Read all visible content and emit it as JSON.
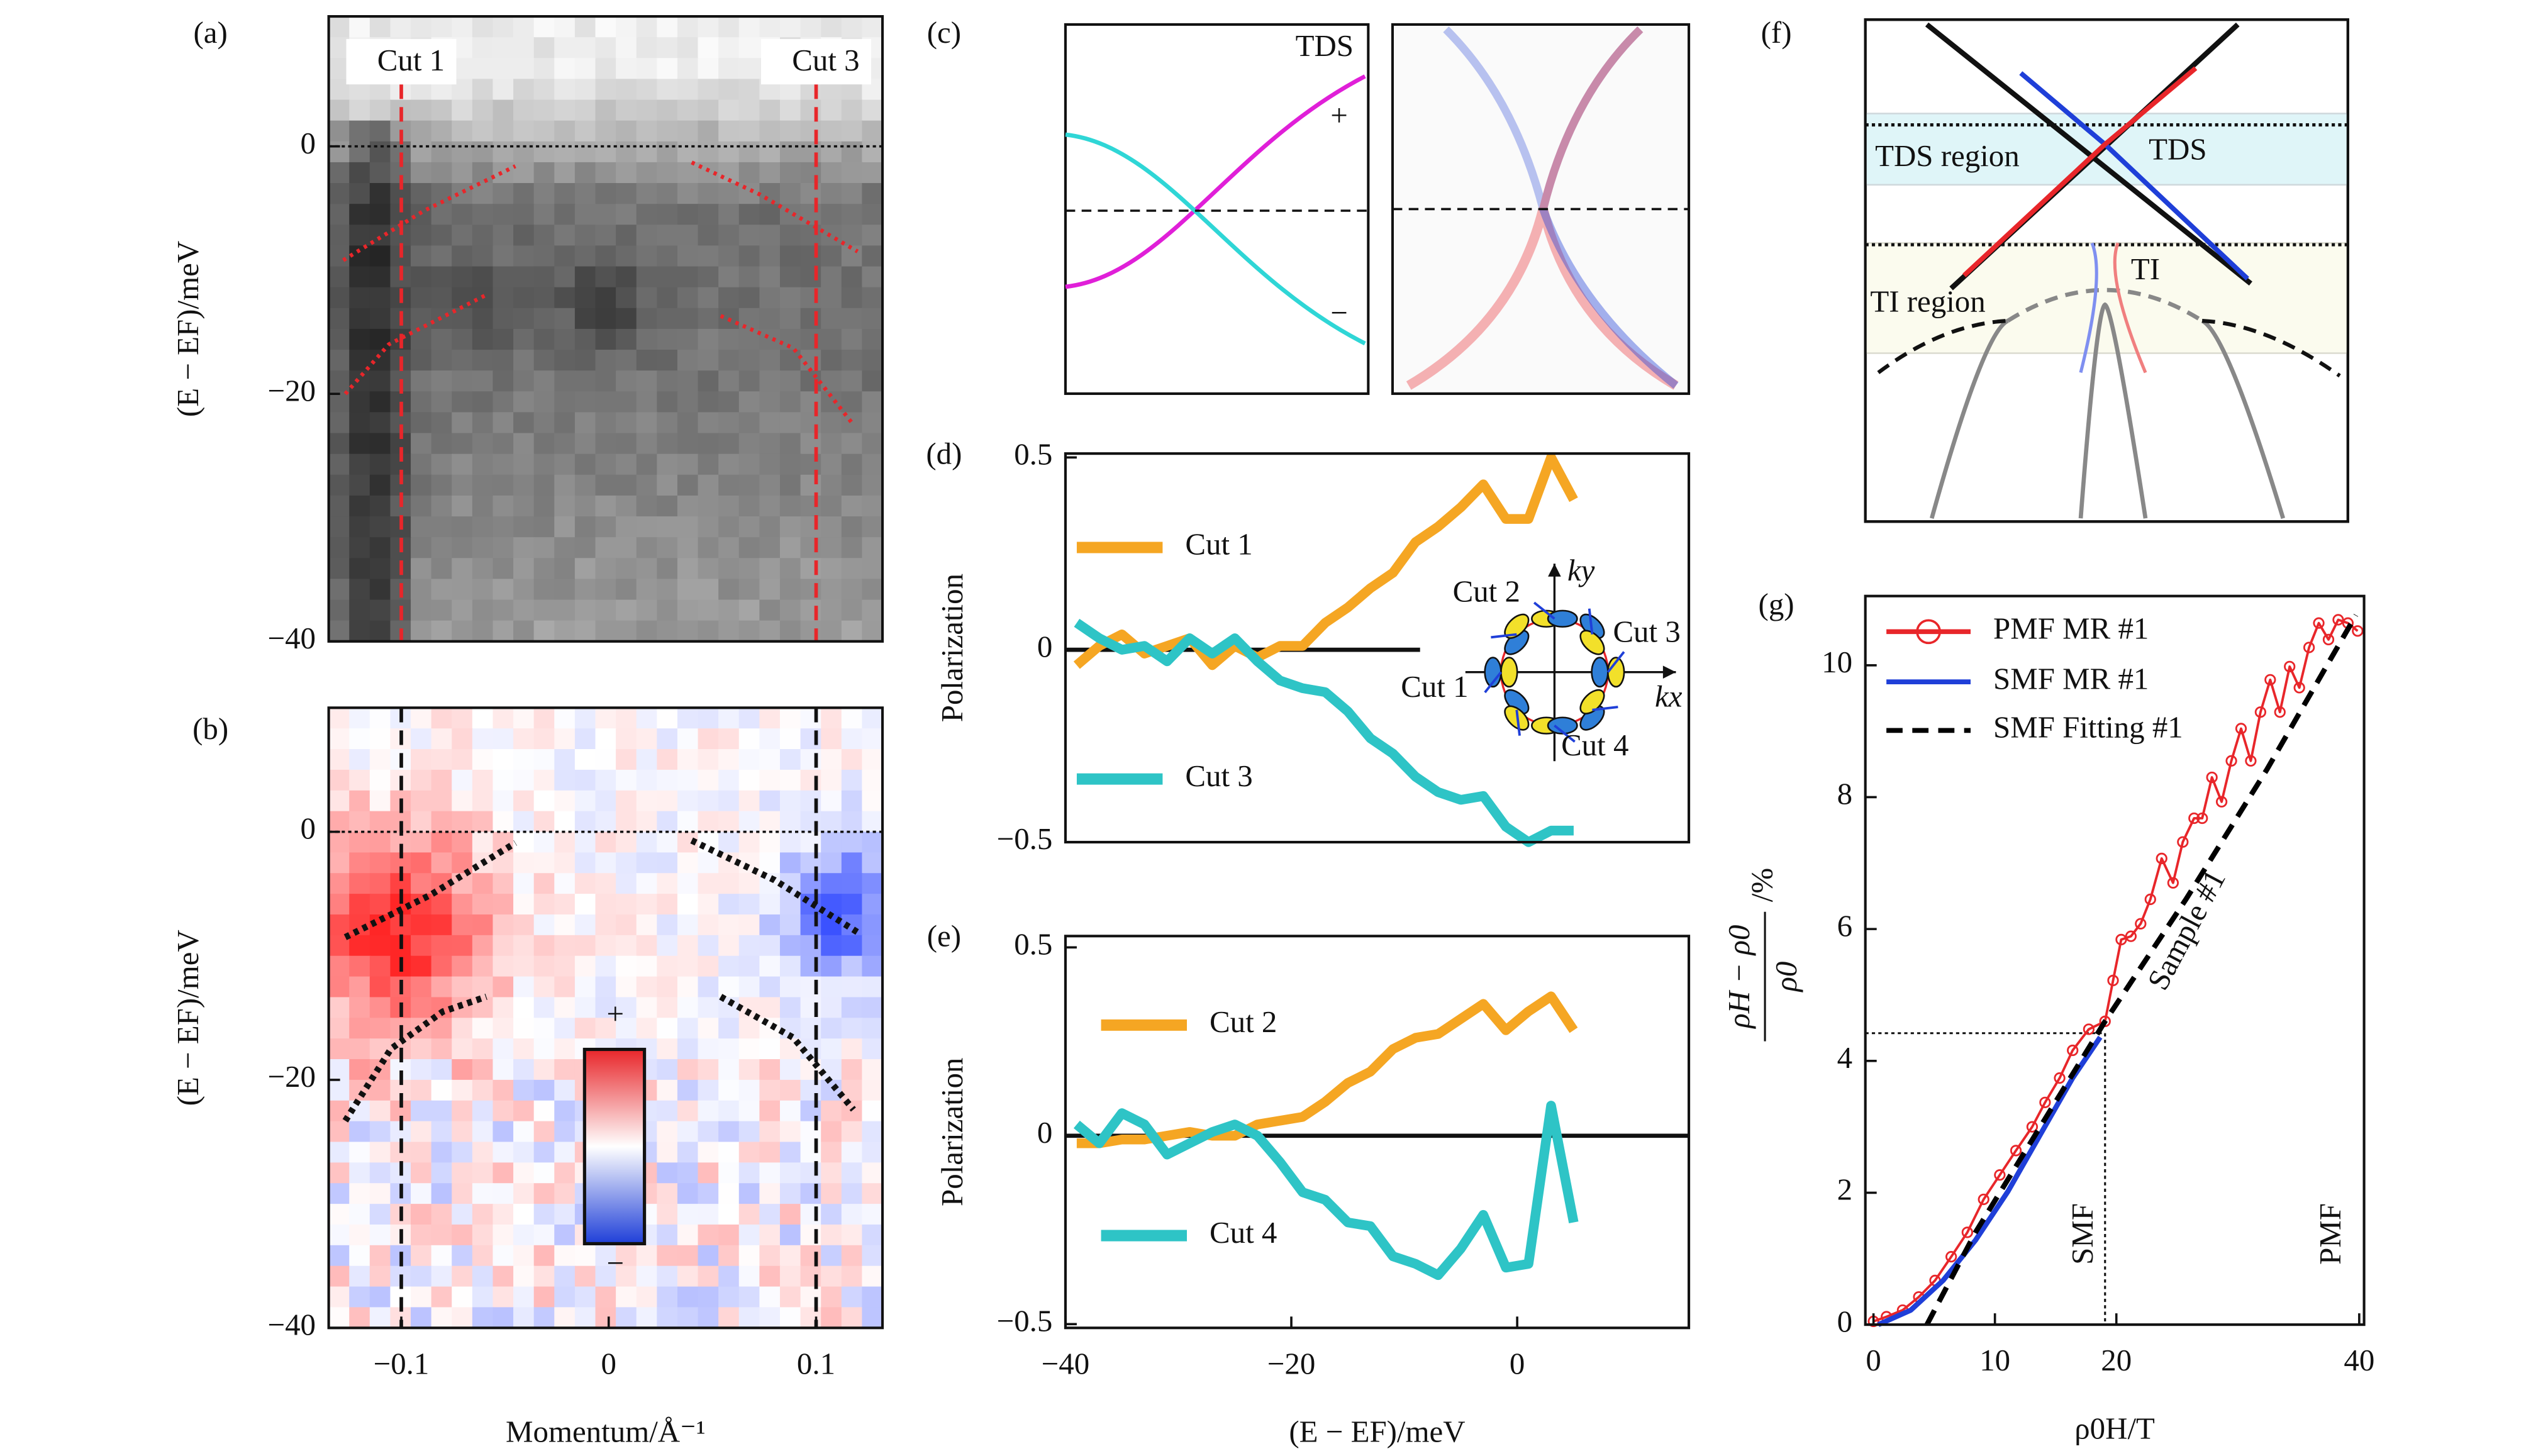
{
  "chart_data": [
    {
      "type": "heatmap",
      "panel": "(a)",
      "colormap": "gray",
      "xlim": [
        -0.135,
        0.132
      ],
      "ylim": [
        -40,
        10.5
      ],
      "yticks": [
        0,
        {
          "value": -20,
          "label": "−20"
        },
        {
          "value": -40,
          "label": "−40"
        }
      ],
      "ylabel": "(E − EF)/meV",
      "hline": 0,
      "cut_color": "#e8262a",
      "cuts": [
        {
          "x": -0.1,
          "label": "Cut 1"
        },
        {
          "x": 0.1,
          "label": "Cut 3"
        }
      ],
      "series": [
        {
          "color": "#e8262a",
          "linestyle": "dotted",
          "x": [
            -0.128,
            -0.089,
            -0.045
          ],
          "values": [
            -9.2,
            -5.2,
            -1.6
          ]
        },
        {
          "color": "#e8262a",
          "linestyle": "dotted",
          "x": [
            -0.127,
            -0.106,
            -0.059
          ],
          "values": [
            -20,
            -16,
            -12
          ]
        },
        {
          "color": "#e8262a",
          "linestyle": "dotted",
          "x": [
            0.04,
            0.073,
            0.12
          ],
          "values": [
            -1.3,
            -3.9,
            -8.5
          ]
        },
        {
          "color": "#e8262a",
          "linestyle": "dotted",
          "x": [
            0.054,
            0.089,
            0.118
          ],
          "values": [
            -13.7,
            -16.3,
            -22.5
          ]
        }
      ]
    },
    {
      "type": "heatmap",
      "panel": "(b)",
      "colormap": "bwr",
      "xlim": [
        -0.135,
        0.132
      ],
      "ylim": [
        -40,
        10
      ],
      "xticks": [
        {
          "value": -0.1,
          "label": "−0.1"
        },
        0,
        0.1
      ],
      "yticks": [
        0,
        {
          "value": -20,
          "label": "−20"
        },
        {
          "value": -40,
          "label": "−40"
        }
      ],
      "xlabel": "Momentum/Å⁻¹",
      "ylabel": "(E − EF)/meV",
      "hline": 0,
      "cut_color": "#111111",
      "cuts": [
        {
          "x": -0.1
        },
        {
          "x": 0.1
        }
      ],
      "colorbar_labels": [
        "+",
        "−"
      ],
      "series": [
        {
          "color": "#111111",
          "linestyle": "dotted",
          "x": [
            -0.127,
            -0.086,
            -0.045
          ],
          "values": [
            -8.5,
            -5.1,
            -0.9
          ]
        },
        {
          "color": "#111111",
          "linestyle": "dotted",
          "x": [
            -0.127,
            -0.105,
            -0.08,
            -0.059
          ],
          "values": [
            -23.3,
            -17.5,
            -14.5,
            -13.3
          ]
        },
        {
          "color": "#111111",
          "linestyle": "dotted",
          "x": [
            0.04,
            0.08,
            0.12
          ],
          "values": [
            -0.7,
            -3.9,
            -8.1
          ]
        },
        {
          "color": "#111111",
          "linestyle": "dotted",
          "x": [
            0.054,
            0.089,
            0.118
          ],
          "values": [
            -13.3,
            -16.6,
            -22.4
          ]
        }
      ]
    },
    {
      "type": "schematic",
      "panel": "(c)",
      "labels": [
        "TDS",
        "+",
        "−"
      ]
    },
    {
      "type": "line",
      "panel": "(d)",
      "xlim": [
        -40,
        15.2
      ],
      "ylim": [
        -0.5,
        0.51
      ],
      "yticks": [
        0.5,
        0,
        {
          "value": -0.5,
          "label": "−0.5"
        }
      ],
      "ylabel": "Polarization",
      "hline": 0,
      "series": [
        {
          "name": "Cut 1",
          "color": "#f5a623",
          "x": [
            -39,
            -37,
            -35,
            -33,
            -31,
            -29,
            -27,
            -25,
            -23,
            -21,
            -19,
            -17,
            -15,
            -13,
            -11,
            -9,
            -7,
            -5,
            -3,
            -1,
            1,
            3,
            5
          ],
          "values": [
            -0.04,
            0.01,
            0.04,
            -0.01,
            0.01,
            0.03,
            -0.04,
            0.01,
            -0.02,
            0.01,
            0.01,
            0.07,
            0.11,
            0.16,
            0.2,
            0.28,
            0.32,
            0.37,
            0.43,
            0.34,
            0.34,
            0.5,
            0.39
          ]
        },
        {
          "name": "Cut 3",
          "color": "#2ec4c6",
          "x": [
            -39,
            -37,
            -35,
            -33,
            -31,
            -29,
            -27,
            -25,
            -23,
            -21,
            -19,
            -17,
            -15,
            -13,
            -11,
            -9,
            -7,
            -5,
            -3,
            -1,
            1,
            3,
            5
          ],
          "values": [
            0.07,
            0.03,
            0,
            0.01,
            -0.03,
            0.03,
            -0.01,
            0.03,
            -0.03,
            -0.08,
            -0.1,
            -0.11,
            -0.16,
            -0.23,
            -0.27,
            -0.33,
            -0.37,
            -0.39,
            -0.38,
            -0.46,
            -0.5,
            -0.47,
            -0.47
          ]
        }
      ],
      "inset": {
        "labels": [
          "Cut 2",
          "Cut 3",
          "Cut 1",
          "Cut 4"
        ],
        "axis_labels": [
          "ky",
          "kx"
        ]
      }
    },
    {
      "type": "line",
      "panel": "(e)",
      "xlim": [
        -40,
        15.2
      ],
      "ylim": [
        -0.51,
        0.53
      ],
      "xticks": [
        {
          "value": -40,
          "label": "−40"
        },
        {
          "value": -20,
          "label": "−20"
        },
        0
      ],
      "yticks": [
        0.5,
        0,
        {
          "value": -0.5,
          "label": "−0.5"
        }
      ],
      "ylabel": "Polarization",
      "xlabel": "(E − EF)/meV",
      "hline": 0,
      "series": [
        {
          "name": "Cut 2",
          "color": "#f5a623",
          "x": [
            -39,
            -37,
            -35,
            -33,
            -31,
            -29,
            -27,
            -25,
            -23,
            -21,
            -19,
            -17,
            -15,
            -13,
            -11,
            -9,
            -7,
            -5,
            -3,
            -1,
            1,
            3,
            5
          ],
          "values": [
            -0.02,
            -0.02,
            -0.01,
            -0.01,
            0,
            0.01,
            0,
            0,
            0.03,
            0.04,
            0.05,
            0.09,
            0.14,
            0.17,
            0.23,
            0.26,
            0.27,
            0.31,
            0.35,
            0.28,
            0.33,
            0.37,
            0.28
          ]
        },
        {
          "name": "Cut 4",
          "color": "#2ec4c6",
          "x": [
            -39,
            -37,
            -35,
            -33,
            -31,
            -29,
            -27,
            -25,
            -23,
            -21,
            -19,
            -17,
            -15,
            -13,
            -11,
            -9,
            -7,
            -5,
            -3,
            -1,
            1,
            3,
            5
          ],
          "values": [
            0.03,
            -0.02,
            0.06,
            0.03,
            -0.05,
            -0.02,
            0.01,
            0.03,
            0,
            -0.07,
            -0.15,
            -0.17,
            -0.23,
            -0.24,
            -0.32,
            -0.34,
            -0.37,
            -0.3,
            -0.21,
            -0.35,
            -0.34,
            0.08,
            -0.23
          ]
        }
      ]
    },
    {
      "type": "schematic",
      "panel": "(f)",
      "labels": [
        "TDS region",
        "TDS",
        "TI region",
        "TI"
      ]
    },
    {
      "type": "line",
      "panel": "(g)",
      "xlim": [
        -0.67,
        40.4
      ],
      "ylim": [
        0,
        11.05
      ],
      "xticks": [
        0,
        10,
        20,
        40
      ],
      "yticks": [
        0,
        2,
        4,
        6,
        8,
        10
      ],
      "xlabel": "ρ0H/T",
      "ylabel": {
        "numerator": "ρH − ρ0",
        "denominator": "ρ0",
        "unit": "/%"
      },
      "guides": {
        "x": 19.07,
        "y": 4.42
      },
      "annotations": [
        "Sample #1",
        "SMF",
        "PMF"
      ],
      "series": [
        {
          "name": "PMF MR #1",
          "color": "#e8262a",
          "marker": "circle",
          "x": [
            0,
            1.07,
            2.4,
            3.73,
            5.07,
            6.4,
            7.73,
            9.07,
            10.4,
            11.73,
            13.07,
            14.13,
            15.33,
            16.4,
            17.73,
            19.07,
            19.73,
            20.4,
            21.2,
            22.0,
            22.8,
            23.73,
            24.67,
            25.47,
            26.4,
            27.07,
            27.87,
            28.67,
            29.47,
            30.27,
            31.07,
            31.87,
            32.67,
            33.47,
            34.27,
            35.07,
            35.87,
            36.67,
            37.47,
            38.27,
            39.07,
            39.87
          ],
          "values": [
            0.05,
            0.12,
            0.22,
            0.42,
            0.67,
            1.03,
            1.4,
            1.9,
            2.27,
            2.64,
            3.0,
            3.37,
            3.74,
            4.16,
            4.48,
            4.6,
            5.22,
            5.84,
            5.89,
            6.08,
            6.45,
            7.07,
            6.7,
            7.32,
            7.68,
            7.68,
            8.3,
            7.93,
            8.55,
            9.04,
            8.55,
            9.29,
            9.78,
            9.29,
            9.98,
            9.66,
            10.27,
            10.64,
            10.39,
            10.69,
            10.64,
            10.52
          ]
        },
        {
          "name": "SMF MR #1",
          "color": "#1f3fd8",
          "x": [
            0.4,
            3.07,
            5.73,
            8.4,
            11.07,
            13.73,
            16.4,
            18.67
          ],
          "values": [
            0,
            0.22,
            0.67,
            1.28,
            2.02,
            2.88,
            3.74,
            4.36
          ]
        },
        {
          "name": "SMF Fitting #1",
          "color": "#000000",
          "linestyle": "dashed",
          "x": [
            4.4,
            8.4,
            13.73,
            19.07,
            25.73,
            32.4,
            39.73
          ],
          "values": [
            0,
            1.4,
            3.0,
            4.6,
            6.45,
            8.42,
            10.76
          ]
        }
      ]
    }
  ]
}
